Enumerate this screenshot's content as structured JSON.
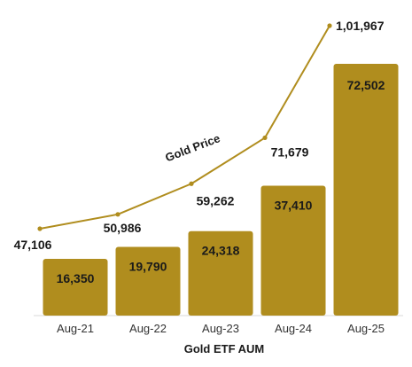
{
  "chart_data": {
    "type": "bar",
    "categories": [
      "Aug-21",
      "Aug-22",
      "Aug-23",
      "Aug-24",
      "Aug-25"
    ],
    "xlabel": "Gold  ETF AUM",
    "series": [
      {
        "name": "Gold  ETF AUM",
        "type": "bar",
        "values": [
          16350,
          19790,
          24318,
          37410,
          72502
        ],
        "labels": [
          "16,350",
          "19,790",
          "24,318",
          "37,410",
          "72,502"
        ],
        "color": "#B08D1E"
      },
      {
        "name": "Gold  Price",
        "type": "line",
        "values": [
          47106,
          50986,
          59262,
          71679,
          101967
        ],
        "labels": [
          "47,106",
          "50,986",
          "59,262",
          "71,679",
          "1,01,967"
        ],
        "color": "#B08D1E"
      }
    ],
    "grid": false
  }
}
